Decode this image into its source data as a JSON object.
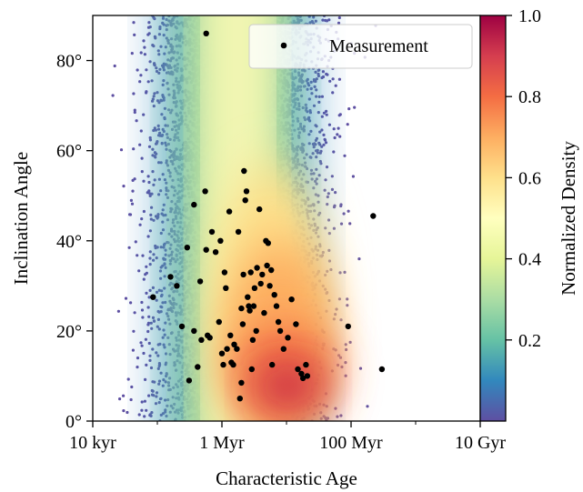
{
  "chart_data": {
    "type": "scatter",
    "xlabel": "Characteristic Age",
    "ylabel": "Inclination Angle",
    "x_scale": "log",
    "x_unit": "yr",
    "xlim": [
      10000,
      10000000000
    ],
    "ylim": [
      0,
      90
    ],
    "x_ticks": [
      {
        "value": 10000,
        "label": "10 kyr"
      },
      {
        "value": 1000000,
        "label": "1 Myr"
      },
      {
        "value": 100000000,
        "label": "100 Myr"
      },
      {
        "value": 10000000000,
        "label": "10 Gyr"
      }
    ],
    "y_ticks": [
      {
        "value": 0,
        "label": "0°"
      },
      {
        "value": 20,
        "label": "20°"
      },
      {
        "value": 40,
        "label": "40°"
      },
      {
        "value": 60,
        "label": "60°"
      },
      {
        "value": 80,
        "label": "80°"
      }
    ],
    "legend": {
      "placement": "top-right",
      "entries": [
        "Measurement"
      ]
    },
    "colorbar": {
      "label": "Normalized Density",
      "range": [
        0,
        1
      ],
      "colormap": "Spectral_r",
      "ticks": [
        {
          "value": 0.2,
          "label": "0.2"
        },
        {
          "value": 0.4,
          "label": "0.4"
        },
        {
          "value": 0.6,
          "label": "0.6"
        },
        {
          "value": 0.8,
          "label": "0.8"
        },
        {
          "value": 1.0,
          "label": "1.0"
        }
      ]
    },
    "colors": {
      "background_points": "#5e4fa2",
      "measurement": "#000000"
    },
    "series": [
      {
        "name": "Measurement",
        "kind": "scatter",
        "x_unit": "yr",
        "points": [
          [
            570000,
            86
          ],
          [
            86000,
            27.5
          ],
          [
            160000,
            32
          ],
          [
            200000,
            30
          ],
          [
            240000,
            21
          ],
          [
            290000,
            38.5
          ],
          [
            310000,
            9
          ],
          [
            370000,
            48
          ],
          [
            370000,
            20
          ],
          [
            420000,
            12
          ],
          [
            460000,
            31
          ],
          [
            480000,
            18
          ],
          [
            550000,
            51
          ],
          [
            570000,
            38
          ],
          [
            600000,
            19
          ],
          [
            650000,
            18.5
          ],
          [
            700000,
            42
          ],
          [
            800000,
            37.5
          ],
          [
            900000,
            22
          ],
          [
            950000,
            40
          ],
          [
            1000000,
            15
          ],
          [
            1050000,
            12.5
          ],
          [
            1100000,
            33
          ],
          [
            1150000,
            29.5
          ],
          [
            1200000,
            16
          ],
          [
            1300000,
            46.5
          ],
          [
            1350000,
            19
          ],
          [
            1400000,
            13
          ],
          [
            1500000,
            12.5
          ],
          [
            1550000,
            17
          ],
          [
            1700000,
            16
          ],
          [
            1800000,
            42
          ],
          [
            1900000,
            5
          ],
          [
            2000000,
            25
          ],
          [
            2000000,
            8.5
          ],
          [
            2100000,
            21.5
          ],
          [
            2150000,
            32.5
          ],
          [
            2200000,
            55.5
          ],
          [
            2300000,
            49
          ],
          [
            2400000,
            51
          ],
          [
            2500000,
            27.5
          ],
          [
            2600000,
            25.5
          ],
          [
            2700000,
            24.5
          ],
          [
            2800000,
            33
          ],
          [
            2900000,
            11.5
          ],
          [
            3000000,
            18
          ],
          [
            3100000,
            25.5
          ],
          [
            3200000,
            29.5
          ],
          [
            3400000,
            20
          ],
          [
            3500000,
            34
          ],
          [
            3800000,
            47
          ],
          [
            4000000,
            30.5
          ],
          [
            4200000,
            32.5
          ],
          [
            4500000,
            24
          ],
          [
            4800000,
            40
          ],
          [
            5000000,
            34.5
          ],
          [
            5200000,
            39.5
          ],
          [
            5500000,
            30
          ],
          [
            5800000,
            33.5
          ],
          [
            6000000,
            12.5
          ],
          [
            6500000,
            28
          ],
          [
            7000000,
            25.5
          ],
          [
            7500000,
            22
          ],
          [
            8000000,
            20
          ],
          [
            9000000,
            16
          ],
          [
            10500000,
            18.5
          ],
          [
            12000000,
            27
          ],
          [
            14000000,
            21.5
          ],
          [
            15000000,
            11.5
          ],
          [
            17000000,
            10.5
          ],
          [
            18000000,
            9.5
          ],
          [
            20000000,
            12.5
          ],
          [
            21000000,
            10
          ],
          [
            90000000,
            21
          ],
          [
            220000000,
            45.5
          ],
          [
            300000000,
            11.5
          ]
        ]
      }
    ]
  }
}
